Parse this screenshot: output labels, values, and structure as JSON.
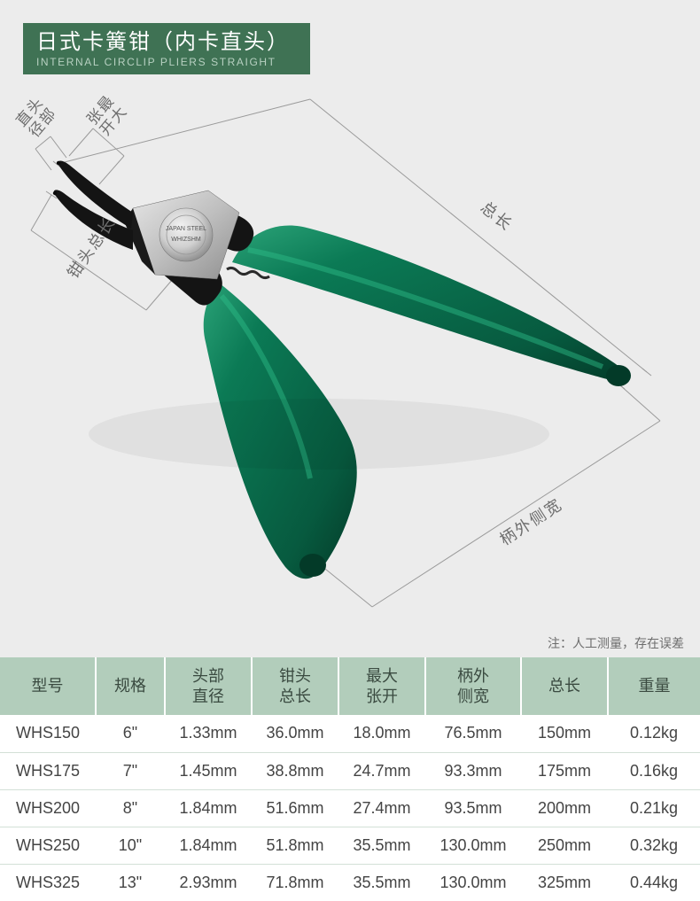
{
  "title": {
    "cn": "日式卡簧钳（内卡直头）",
    "en": "INTERNAL CIRCLIP PLIERS STRAIGHT"
  },
  "diagram": {
    "labels": {
      "tip_diameter": "头部\n直径",
      "max_open": "最大\n张开",
      "tip_length": "钳头总长",
      "total_length": "总长",
      "handle_width": "柄外侧宽"
    },
    "colors": {
      "background": "#ececec",
      "guide_line": "#9a9a9a",
      "label_text": "#6d6d6d",
      "handle_green": "#0b7a55",
      "handle_dark": "#075a3f",
      "handle_hilite": "#2aa277",
      "metal_dark": "#141414",
      "metal_mid": "#3a3a3a",
      "pivot_face": "#d8d8d8",
      "pivot_shadow": "#8f8f8f",
      "spring": "#2a2a2a"
    }
  },
  "note": "注：人工测量，存在误差",
  "table": {
    "header_bg": "#b2cdbb",
    "border_color": "#d3e0d7",
    "columns": [
      {
        "key": "model",
        "label": "型号"
      },
      {
        "key": "size",
        "label": "规格"
      },
      {
        "key": "tipdia",
        "label": "头部\n直径"
      },
      {
        "key": "tiplen",
        "label": "钳头\n总长"
      },
      {
        "key": "open",
        "label": "最大\n张开"
      },
      {
        "key": "handle",
        "label": "柄外\n侧宽"
      },
      {
        "key": "total",
        "label": "总长"
      },
      {
        "key": "weight",
        "label": "重量"
      }
    ],
    "rows": [
      {
        "model": "WHS150",
        "size": "6\"",
        "tipdia": "1.33mm",
        "tiplen": "36.0mm",
        "open": "18.0mm",
        "handle": "76.5mm",
        "total": "150mm",
        "weight": "0.12kg"
      },
      {
        "model": "WHS175",
        "size": "7\"",
        "tipdia": "1.45mm",
        "tiplen": "38.8mm",
        "open": "24.7mm",
        "handle": "93.3mm",
        "total": "175mm",
        "weight": "0.16kg"
      },
      {
        "model": "WHS200",
        "size": "8\"",
        "tipdia": "1.84mm",
        "tiplen": "51.6mm",
        "open": "27.4mm",
        "handle": "93.5mm",
        "total": "200mm",
        "weight": "0.21kg"
      },
      {
        "model": "WHS250",
        "size": "10\"",
        "tipdia": "1.84mm",
        "tiplen": "51.8mm",
        "open": "35.5mm",
        "handle": "130.0mm",
        "total": "250mm",
        "weight": "0.32kg"
      },
      {
        "model": "WHS325",
        "size": "13\"",
        "tipdia": "2.93mm",
        "tiplen": "71.8mm",
        "open": "35.5mm",
        "handle": "130.0mm",
        "total": "325mm",
        "weight": "0.44kg"
      }
    ]
  }
}
